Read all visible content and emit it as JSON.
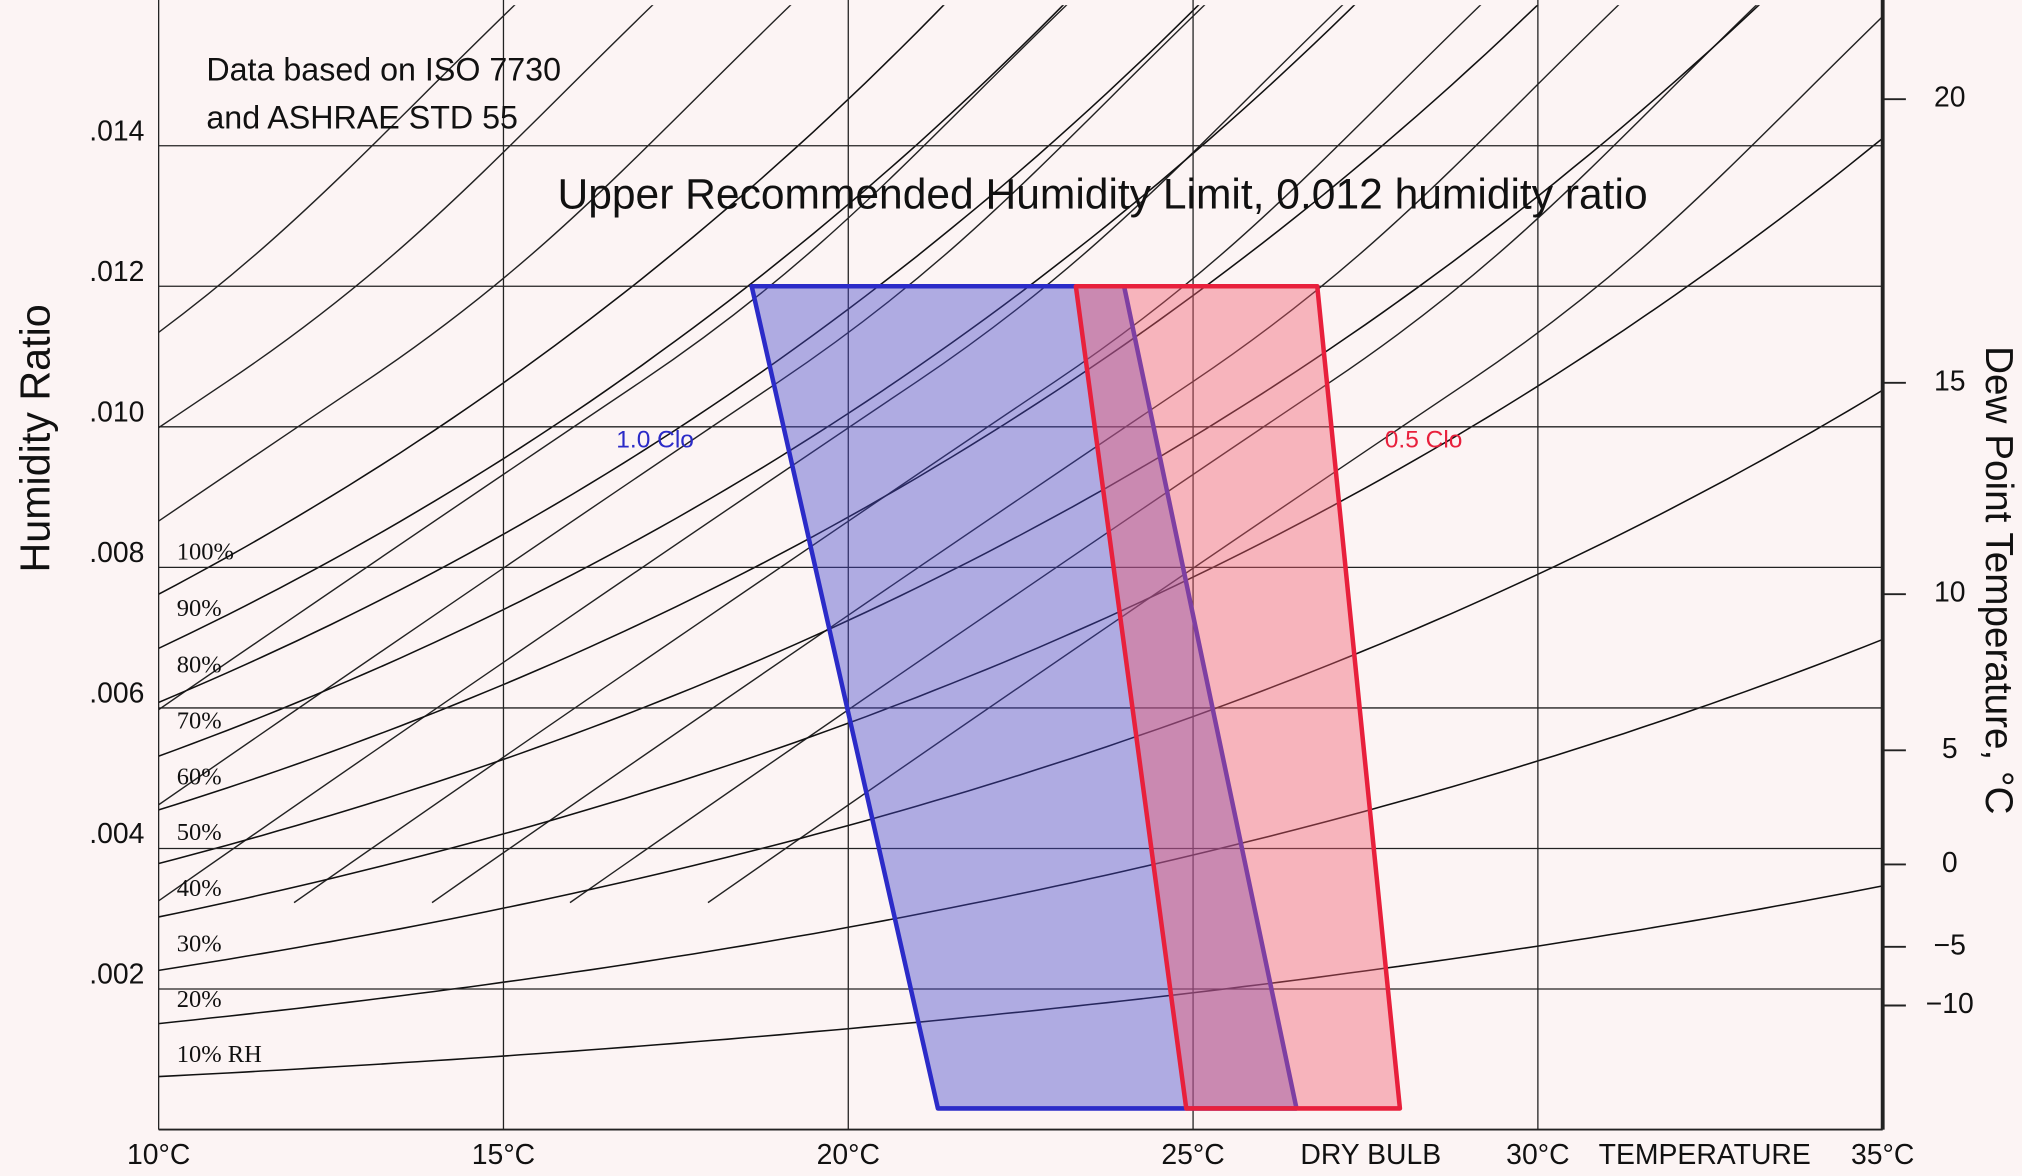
{
  "chart_data": {
    "type": "psychrometric",
    "title": "Upper Recommended Humidity Limit, 0.012 humidity ratio",
    "annotations": [
      "Data based on ISO 7730",
      "and ASHRAE STD 55"
    ],
    "x_label": [
      "DRY BULB",
      "TEMPERATURE"
    ],
    "y_label": "Humidity Ratio",
    "y2_label": "Dew Point Temperature, °C",
    "xlim": [
      10,
      35
    ],
    "xticks": [
      {
        "value": 10,
        "label": "10°C"
      },
      {
        "value": 15,
        "label": "15°C"
      },
      {
        "value": 20,
        "label": "20°C"
      },
      {
        "value": 25,
        "label": "25°C"
      },
      {
        "value": 30,
        "label": "30°C"
      },
      {
        "value": 35,
        "label": "35°C"
      }
    ],
    "ylim": [
      0,
      0.016
    ],
    "yticks": [
      {
        "value": 0.002,
        "label": ".002"
      },
      {
        "value": 0.004,
        "label": ".004"
      },
      {
        "value": 0.006,
        "label": ".006"
      },
      {
        "value": 0.008,
        "label": ".008"
      },
      {
        "value": 0.01,
        "label": ".010"
      },
      {
        "value": 0.012,
        "label": ".012"
      },
      {
        "value": 0.014,
        "label": ".014"
      }
    ],
    "y2ticks": [
      {
        "value": -10,
        "label": "−10"
      },
      {
        "value": -5,
        "label": "−5"
      },
      0,
      5,
      10,
      15,
      20
    ],
    "grid": true,
    "rh_curves": {
      "values": [
        100,
        90,
        80,
        70,
        60,
        50,
        40,
        30,
        20,
        10
      ],
      "value_labels": [
        "100%",
        "90%",
        "80%",
        "70%",
        "60%",
        "50%",
        "40%",
        "30%",
        "20%",
        "10% RH"
      ]
    },
    "series": [
      {
        "name": "1.0 Clo",
        "color": "#2b2bc8",
        "fill": "rgba(70,70,200,0.42)",
        "x": [
          18.6,
          24.0,
          26.5,
          21.3
        ],
        "values": [
          0.012,
          0.012,
          0.0003,
          0.0003
        ]
      },
      {
        "name": "0.5 Clo",
        "color": "#e8203c",
        "fill": "rgba(240,90,110,0.42)",
        "x": [
          23.3,
          26.8,
          28.0,
          24.9
        ],
        "values": [
          0.012,
          0.012,
          0.0003,
          0.0003
        ]
      }
    ]
  }
}
